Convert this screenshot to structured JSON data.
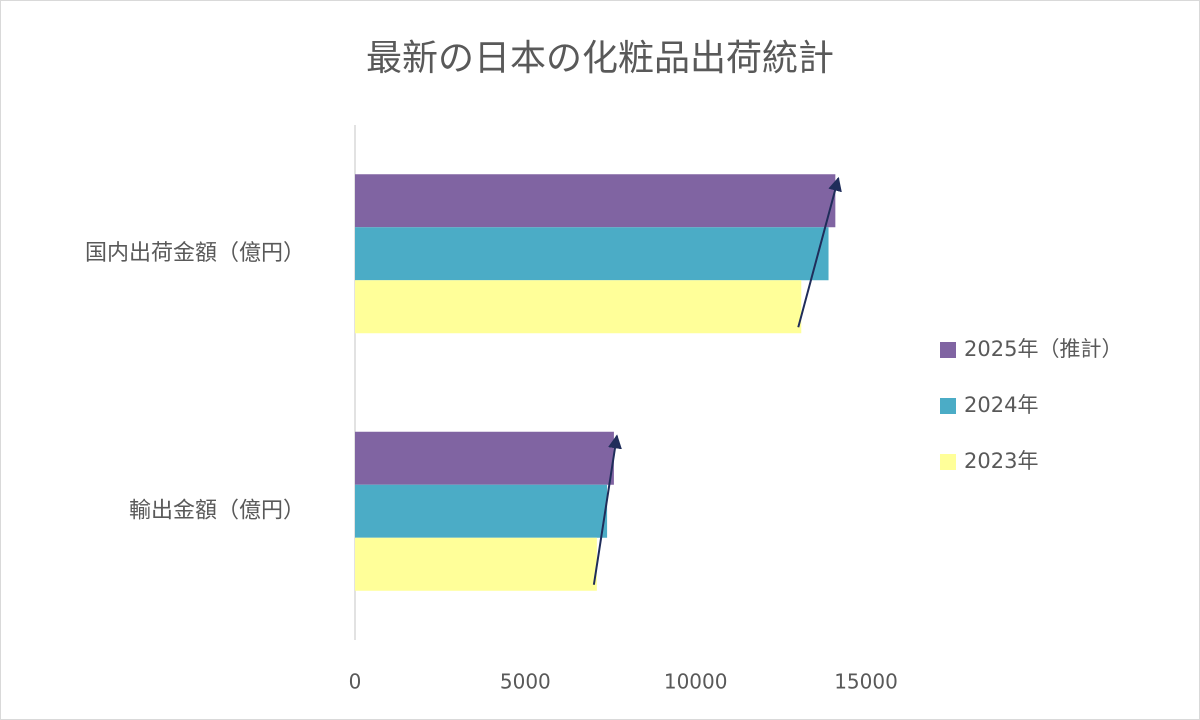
{
  "chart_data": {
    "type": "hbar",
    "title": "最新の日本の化粧品出荷統計",
    "categories": [
      "国内出荷金額（億円）",
      "輸出金額（億円）"
    ],
    "series": [
      {
        "name": "2025年（推計）",
        "color": "#8064a2",
        "values": [
          14100,
          7600
        ]
      },
      {
        "name": "2024年",
        "color": "#4bacc6",
        "values": [
          13900,
          7400
        ]
      },
      {
        "name": "2023年",
        "color": "#ffff99",
        "values": [
          13100,
          7100
        ]
      }
    ],
    "xlim": [
      0,
      15000
    ],
    "xticks": [
      0,
      5000,
      10000,
      15000
    ],
    "grid": false,
    "legend": "right"
  }
}
